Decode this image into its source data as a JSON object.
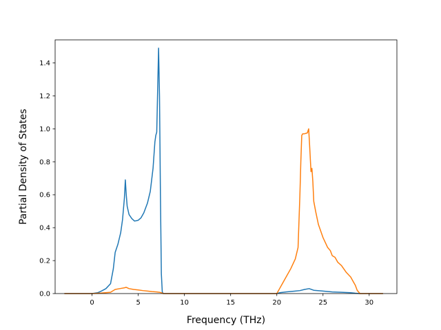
{
  "chart_data": {
    "type": "line",
    "title": "",
    "xlabel": "Frequency (THz)",
    "ylabel": "Partial Density of States",
    "xlim": [
      -4.0,
      33.0
    ],
    "ylim": [
      0.0,
      1.54
    ],
    "xticks": [
      0,
      5,
      10,
      15,
      20,
      25,
      30
    ],
    "yticks": [
      0.0,
      0.2,
      0.4,
      0.6,
      0.8,
      1.0,
      1.2,
      1.4
    ],
    "grid": false,
    "legend": "none",
    "series": [
      {
        "color": "#1f77b4",
        "x": [
          -3.0,
          0.0,
          0.6,
          1.0,
          1.5,
          2.0,
          2.3,
          2.5,
          2.8,
          3.1,
          3.3,
          3.5,
          3.6,
          3.7,
          3.8,
          4.0,
          4.3,
          4.6,
          5.0,
          5.3,
          5.6,
          6.0,
          6.3,
          6.6,
          6.8,
          6.9,
          7.0,
          7.2,
          7.3,
          7.4,
          7.5,
          7.6,
          7.7,
          8.0,
          10.0,
          15.0,
          20.0,
          20.3,
          21.0,
          22.0,
          22.5,
          23.0,
          23.5,
          24.0,
          25.0,
          26.0,
          27.0,
          28.0,
          28.5,
          29.0,
          31.5
        ],
        "y": [
          0.0,
          0.0,
          0.005,
          0.015,
          0.03,
          0.06,
          0.15,
          0.25,
          0.3,
          0.37,
          0.45,
          0.58,
          0.69,
          0.6,
          0.53,
          0.48,
          0.455,
          0.44,
          0.445,
          0.46,
          0.49,
          0.55,
          0.62,
          0.76,
          0.92,
          0.96,
          0.98,
          1.49,
          1.2,
          0.6,
          0.12,
          0.01,
          0.0,
          0.0,
          0.0,
          0.0,
          0.0,
          0.005,
          0.01,
          0.015,
          0.018,
          0.025,
          0.03,
          0.02,
          0.015,
          0.01,
          0.008,
          0.005,
          0.002,
          0.0,
          0.0
        ]
      },
      {
        "color": "#ff7f0e",
        "x": [
          -3.0,
          0.0,
          1.0,
          2.0,
          2.5,
          3.0,
          3.5,
          3.7,
          4.0,
          4.5,
          5.0,
          5.5,
          6.0,
          6.5,
          7.0,
          7.3,
          7.6,
          7.7,
          8.0,
          10.0,
          15.0,
          20.0,
          20.3,
          20.6,
          21.0,
          21.5,
          22.0,
          22.3,
          22.5,
          22.6,
          22.7,
          22.8,
          23.0,
          23.3,
          23.45,
          23.55,
          23.7,
          23.8,
          23.9,
          24.0,
          24.2,
          24.5,
          25.0,
          25.5,
          25.8,
          26.0,
          26.3,
          26.6,
          27.0,
          27.5,
          28.0,
          28.3,
          28.5,
          28.7,
          29.0,
          31.5
        ],
        "y": [
          0.0,
          0.0,
          0.003,
          0.008,
          0.025,
          0.03,
          0.035,
          0.038,
          0.03,
          0.025,
          0.022,
          0.018,
          0.015,
          0.012,
          0.01,
          0.008,
          0.003,
          0.0,
          0.0,
          0.0,
          0.0,
          0.0,
          0.03,
          0.06,
          0.1,
          0.15,
          0.21,
          0.28,
          0.6,
          0.8,
          0.96,
          0.97,
          0.97,
          0.975,
          1.0,
          0.9,
          0.74,
          0.76,
          0.68,
          0.56,
          0.5,
          0.42,
          0.34,
          0.28,
          0.26,
          0.23,
          0.22,
          0.19,
          0.17,
          0.13,
          0.1,
          0.07,
          0.05,
          0.02,
          0.0,
          0.0
        ]
      }
    ]
  }
}
